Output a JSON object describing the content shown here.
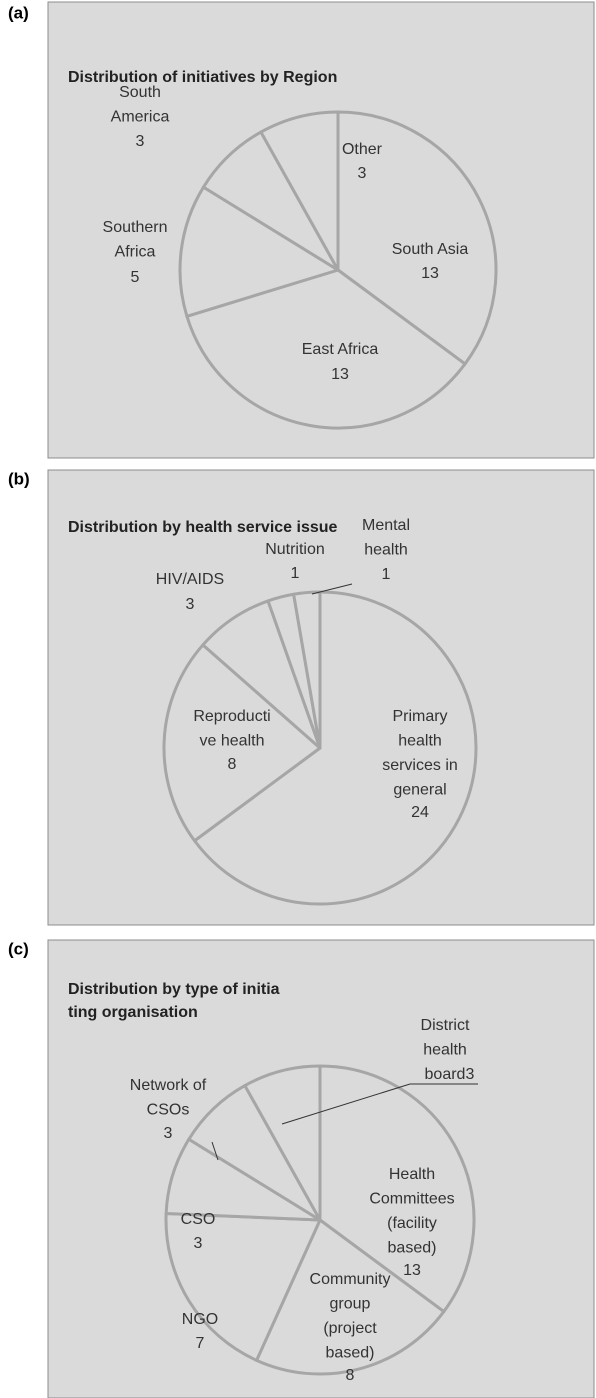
{
  "chart_data": [
    {
      "type": "pie",
      "panel": "(a)",
      "title": "Distribution of initiatives by Region",
      "categories": [
        "South Asia",
        "East Africa",
        "Southern Africa",
        "South America",
        "Other"
      ],
      "values": [
        13,
        13,
        5,
        3,
        3
      ]
    },
    {
      "type": "pie",
      "panel": "(b)",
      "title": "Distribution by health service issue",
      "categories": [
        "Primary health services in general",
        "Reproductive health",
        "HIV/AIDS",
        "Nutrition",
        "Mental health"
      ],
      "values": [
        24,
        8,
        3,
        1,
        1
      ]
    },
    {
      "type": "pie",
      "panel": "(c)",
      "title": "Distribution by type of initiating organisation",
      "categories": [
        "Health Committees (facility based)",
        "Community group (project based)",
        "NGO",
        "CSO",
        "Network of CSOs",
        "District health board"
      ],
      "values": [
        13,
        8,
        7,
        3,
        3,
        3
      ]
    }
  ]
}
